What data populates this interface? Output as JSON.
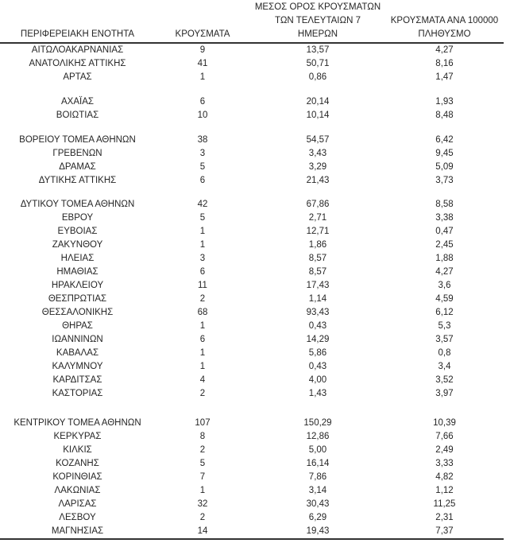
{
  "colors": {
    "text": "#262626",
    "rule": "#333333",
    "background": "#ffffff"
  },
  "chart_data": {
    "type": "table",
    "columns": [
      {
        "id": "region",
        "lines": [
          "ΠΕΡΙΦΕΡΕΙΑΚΗ ΕΝΟΤΗΤΑ"
        ]
      },
      {
        "id": "cases",
        "lines": [
          "ΚΡΟΥΣΜΑΤΑ"
        ]
      },
      {
        "id": "avg7",
        "lines": [
          "ΜΕΣΟΣ ΟΡΟΣ ΚΡΟΥΣΜΑΤΩΝ",
          "ΤΩΝ ΤΕΛΕΥΤΑΙΩΝ 7",
          "ΗΜΕΡΩΝ"
        ]
      },
      {
        "id": "per100k",
        "lines": [
          "ΚΡΟΥΣΜΑΤΑ ΑΝΑ 100000",
          "ΠΛΗΘΥΣΜΟ"
        ]
      }
    ],
    "sections": [
      {
        "rows": [
          {
            "region": "ΑΙΤΩΛΟΑΚΑΡΝΑΝΙΑΣ",
            "cases": "9",
            "avg7": "13,57",
            "per100k": "4,27"
          },
          {
            "region": "ΑΝΑΤΟΛΙΚΗΣ ΑΤΤΙΚΗΣ",
            "cases": "41",
            "avg7": "50,71",
            "per100k": "8,16"
          },
          {
            "region": "ΑΡΤΑΣ",
            "cases": "1",
            "avg7": "0,86",
            "per100k": "1,47"
          }
        ]
      },
      {
        "rows": [
          {
            "region": "ΑΧΑΪΑΣ",
            "cases": "6",
            "avg7": "20,14",
            "per100k": "1,93"
          },
          {
            "region": "ΒΟΙΩΤΙΑΣ",
            "cases": "10",
            "avg7": "10,14",
            "per100k": "8,48"
          }
        ]
      },
      {
        "rows": [
          {
            "region": "ΒΟΡΕΙΟΥ ΤΟΜΕΑ ΑΘΗΝΩΝ",
            "cases": "38",
            "avg7": "54,57",
            "per100k": "6,42"
          },
          {
            "region": "ΓΡΕΒΕΝΩΝ",
            "cases": "3",
            "avg7": "3,43",
            "per100k": "9,45"
          },
          {
            "region": "ΔΡΑΜΑΣ",
            "cases": "5",
            "avg7": "3,29",
            "per100k": "5,09"
          },
          {
            "region": "ΔΥΤΙΚΗΣ ΑΤΤΙΚΗΣ",
            "cases": "6",
            "avg7": "21,43",
            "per100k": "3,73"
          }
        ]
      },
      {
        "rows": [
          {
            "region": "ΔΥΤΙΚΟΥ ΤΟΜΕΑ ΑΘΗΝΩΝ",
            "cases": "42",
            "avg7": "67,86",
            "per100k": "8,58"
          },
          {
            "region": "ΕΒΡΟΥ",
            "cases": "5",
            "avg7": "2,71",
            "per100k": "3,38"
          },
          {
            "region": "ΕΥΒΟΙΑΣ",
            "cases": "1",
            "avg7": "12,71",
            "per100k": "0,47"
          },
          {
            "region": "ΖΑΚΥΝΘΟΥ",
            "cases": "1",
            "avg7": "1,86",
            "per100k": "2,45"
          },
          {
            "region": "ΗΛΕΙΑΣ",
            "cases": "3",
            "avg7": "8,57",
            "per100k": "1,88"
          },
          {
            "region": "ΗΜΑΘΙΑΣ",
            "cases": "6",
            "avg7": "8,57",
            "per100k": "4,27"
          },
          {
            "region": "ΗΡΑΚΛΕΙΟΥ",
            "cases": "11",
            "avg7": "17,43",
            "per100k": "3,6"
          },
          {
            "region": "ΘΕΣΠΡΩΤΙΑΣ",
            "cases": "2",
            "avg7": "1,14",
            "per100k": "4,59"
          },
          {
            "region": "ΘΕΣΣΑΛΟΝΙΚΗΣ",
            "cases": "68",
            "avg7": "93,43",
            "per100k": "6,12"
          },
          {
            "region": "ΘΗΡΑΣ",
            "cases": "1",
            "avg7": "0,43",
            "per100k": "5,3"
          },
          {
            "region": "ΙΩΑΝΝΙΝΩΝ",
            "cases": "6",
            "avg7": "14,29",
            "per100k": "3,57"
          },
          {
            "region": "ΚΑΒΑΛΑΣ",
            "cases": "1",
            "avg7": "5,86",
            "per100k": "0,8"
          },
          {
            "region": "ΚΑΛΥΜΝΟΥ",
            "cases": "1",
            "avg7": "0,43",
            "per100k": "3,4"
          },
          {
            "region": "ΚΑΡΔΙΤΣΑΣ",
            "cases": "4",
            "avg7": "4,00",
            "per100k": "3,52"
          },
          {
            "region": "ΚΑΣΤΟΡΙΑΣ",
            "cases": "2",
            "avg7": "1,43",
            "per100k": "3,97"
          }
        ]
      },
      {
        "rows": [
          {
            "region": "ΚΕΝΤΡΙΚΟΥ ΤΟΜΕΑ ΑΘΗΝΩΝ",
            "cases": "107",
            "avg7": "150,29",
            "per100k": "10,39"
          },
          {
            "region": "ΚΕΡΚΥΡΑΣ",
            "cases": "8",
            "avg7": "12,86",
            "per100k": "7,66"
          },
          {
            "region": "ΚΙΛΚΙΣ",
            "cases": "2",
            "avg7": "5,00",
            "per100k": "2,49"
          },
          {
            "region": "ΚΟΖΑΝΗΣ",
            "cases": "5",
            "avg7": "16,14",
            "per100k": "3,33"
          },
          {
            "region": "ΚΟΡΙΝΘΙΑΣ",
            "cases": "7",
            "avg7": "7,86",
            "per100k": "4,82"
          },
          {
            "region": "ΛΑΚΩΝΙΑΣ",
            "cases": "1",
            "avg7": "3,14",
            "per100k": "1,12"
          },
          {
            "region": "ΛΑΡΙΣΑΣ",
            "cases": "32",
            "avg7": "30,43",
            "per100k": "11,25"
          },
          {
            "region": "ΛΕΣΒΟΥ",
            "cases": "2",
            "avg7": "6,29",
            "per100k": "2,31"
          },
          {
            "region": "ΜΑΓΝΗΣΙΑΣ",
            "cases": "14",
            "avg7": "19,43",
            "per100k": "7,37"
          }
        ]
      }
    ]
  }
}
